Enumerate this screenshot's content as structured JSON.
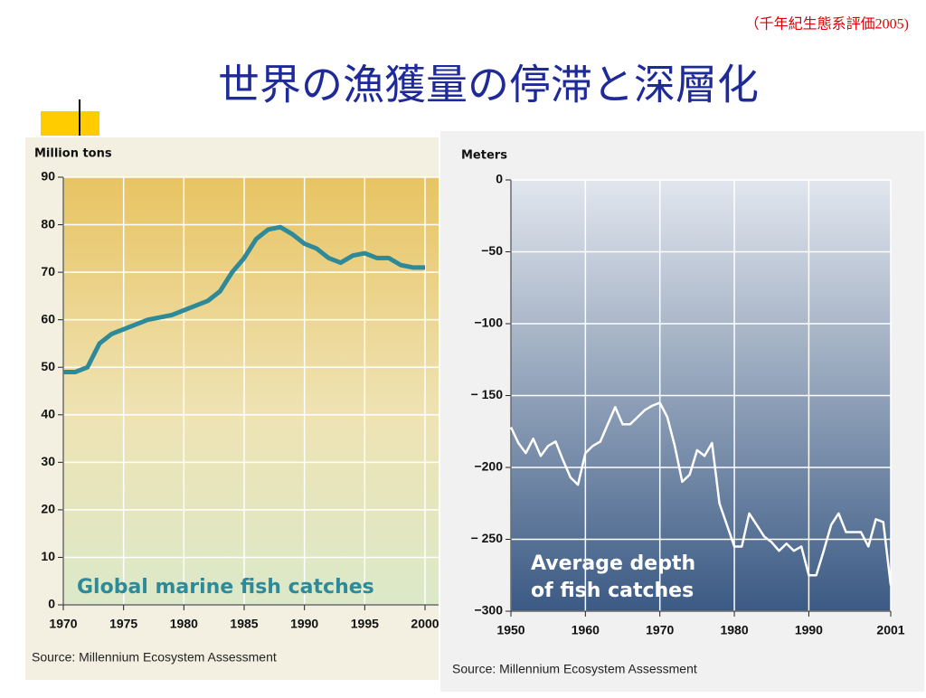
{
  "citation": "（千年紀生態系評価2005)",
  "title": "世界の漁獲量の停滞と深層化",
  "chart_data": [
    {
      "type": "line",
      "y_label": "Million tons",
      "annotation": "Global marine fish catches",
      "source": "Source: Millennium Ecosystem Assessment",
      "color": "#2e8a99",
      "grid": true,
      "x": [
        1970,
        1971,
        1972,
        1973,
        1974,
        1975,
        1976,
        1977,
        1978,
        1979,
        1980,
        1981,
        1982,
        1983,
        1984,
        1985,
        1986,
        1987,
        1988,
        1989,
        1990,
        1991,
        1992,
        1993,
        1994,
        1995,
        1996,
        1997,
        1998,
        1999,
        2000
      ],
      "values": [
        49,
        49,
        50,
        55,
        57,
        58,
        59,
        60,
        60.5,
        61,
        62,
        63,
        64,
        66,
        70,
        73,
        77,
        79,
        79.5,
        78,
        76,
        75,
        73,
        72,
        73.5,
        74,
        73,
        73,
        71.5,
        71,
        71
      ],
      "xlim": [
        1970,
        2000
      ],
      "xticks": [
        1970,
        1975,
        1980,
        1985,
        1990,
        1995,
        2000
      ],
      "ylim": [
        0,
        90
      ],
      "yticks": [
        0,
        10,
        20,
        30,
        40,
        50,
        60,
        70,
        80,
        90
      ]
    },
    {
      "type": "line",
      "y_label": "Meters",
      "annotation": [
        "Average depth",
        "of fish catches"
      ],
      "source": "Source: Millennium Ecosystem Assessment",
      "color": "#ffffff",
      "grid": true,
      "x": [
        1950,
        1951,
        1952,
        1953,
        1954,
        1955,
        1956,
        1957,
        1958,
        1959,
        1960,
        1961,
        1962,
        1963,
        1964,
        1965,
        1966,
        1967,
        1968,
        1969,
        1970,
        1971,
        1972,
        1973,
        1974,
        1975,
        1976,
        1977,
        1978,
        1979,
        1980,
        1981,
        1982,
        1983,
        1984,
        1985,
        1986,
        1987,
        1988,
        1989,
        1990,
        1991,
        1992,
        1993,
        1994,
        1995,
        1996,
        1997,
        1998,
        1999,
        2000,
        2001
      ],
      "values": [
        -172,
        -183,
        -190,
        -180,
        -192,
        -185,
        -182,
        -195,
        -207,
        -212,
        -190,
        -185,
        -182,
        -170,
        -158,
        -170,
        -170,
        -165,
        -160,
        -157,
        -155,
        -165,
        -185,
        -210,
        -205,
        -188,
        -192,
        -183,
        -225,
        -240,
        -255,
        -255,
        -232,
        -240,
        -248,
        -252,
        -258,
        -253,
        -258,
        -255,
        -275,
        -275,
        -258,
        -240,
        -232,
        -245,
        -245,
        -245,
        -255,
        -236,
        -238,
        -282
      ],
      "xlim": [
        1950,
        2001
      ],
      "xticks": [
        1950,
        1960,
        1970,
        1980,
        1990,
        2001
      ],
      "ylim": [
        -300,
        0
      ],
      "yticks": [
        0,
        {
          "value": -50,
          "label": "−50"
        },
        {
          "value": -100,
          "label": "−100"
        },
        {
          "value": -150,
          "label": "− 150"
        },
        {
          "value": -200,
          "label": "−200"
        },
        {
          "value": -250,
          "label": "− 250"
        },
        {
          "value": -300,
          "label": "−300"
        }
      ]
    }
  ]
}
